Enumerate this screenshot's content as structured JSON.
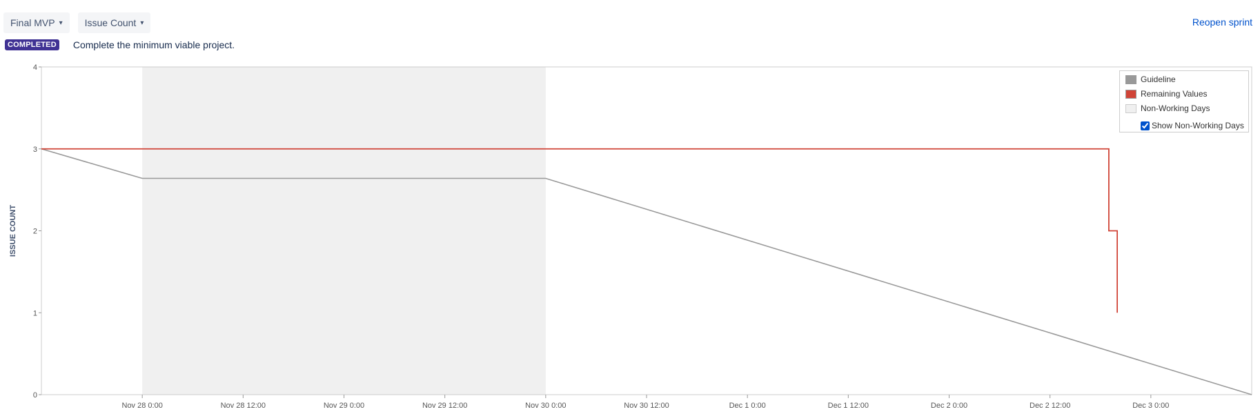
{
  "toolbar": {
    "sprint_select": "Final MVP",
    "metric_select": "Issue Count"
  },
  "status": {
    "badge": "COMPLETED",
    "goal": "Complete the minimum viable project."
  },
  "actions": {
    "reopen": "Reopen sprint"
  },
  "legend": {
    "guideline": "Guideline",
    "remaining": "Remaining Values",
    "non_working": "Non-Working Days",
    "show_non_working": "Show Non-Working Days",
    "show_non_working_checked": true
  },
  "colors": {
    "guideline": "#999999",
    "remaining": "#d04437",
    "non_working": "#f0f0f0",
    "badge": "#403294",
    "link": "#0052cc"
  },
  "chart_data": {
    "type": "line",
    "ylabel": "ISSUE COUNT",
    "xlabel": "",
    "x_unit": "hours since Nov 27 12:00",
    "x_ticks": [
      "Nov 28 0:00",
      "Nov 28 12:00",
      "Nov 29 0:00",
      "Nov 29 12:00",
      "Nov 30 0:00",
      "Nov 30 12:00",
      "Dec 1 0:00",
      "Dec 1 12:00",
      "Dec 2 0:00",
      "Dec 2 12:00",
      "Dec 3 0:00"
    ],
    "y_ticks": [
      "0",
      "1",
      "2",
      "3",
      "4"
    ],
    "ylim": [
      0,
      4
    ],
    "non_working_periods": [
      [
        "Nov 28 0:00",
        "Nov 30 0:00"
      ]
    ],
    "series": [
      {
        "name": "Guideline",
        "points": [
          [
            "Nov 27 12:00",
            3
          ],
          [
            "Nov 28 0:00",
            2.64
          ],
          [
            "Nov 30 0:00",
            2.64
          ],
          [
            "Dec 3 12:00",
            0
          ]
        ]
      },
      {
        "name": "Remaining Values",
        "points": [
          [
            "Nov 27 12:00",
            3
          ],
          [
            "Dec 2 19:00",
            3
          ],
          [
            "Dec 2 19:00",
            2
          ],
          [
            "Dec 2 20:00",
            2
          ],
          [
            "Dec 2 20:00",
            1
          ]
        ]
      }
    ],
    "legend": "top-right",
    "grid": false
  }
}
